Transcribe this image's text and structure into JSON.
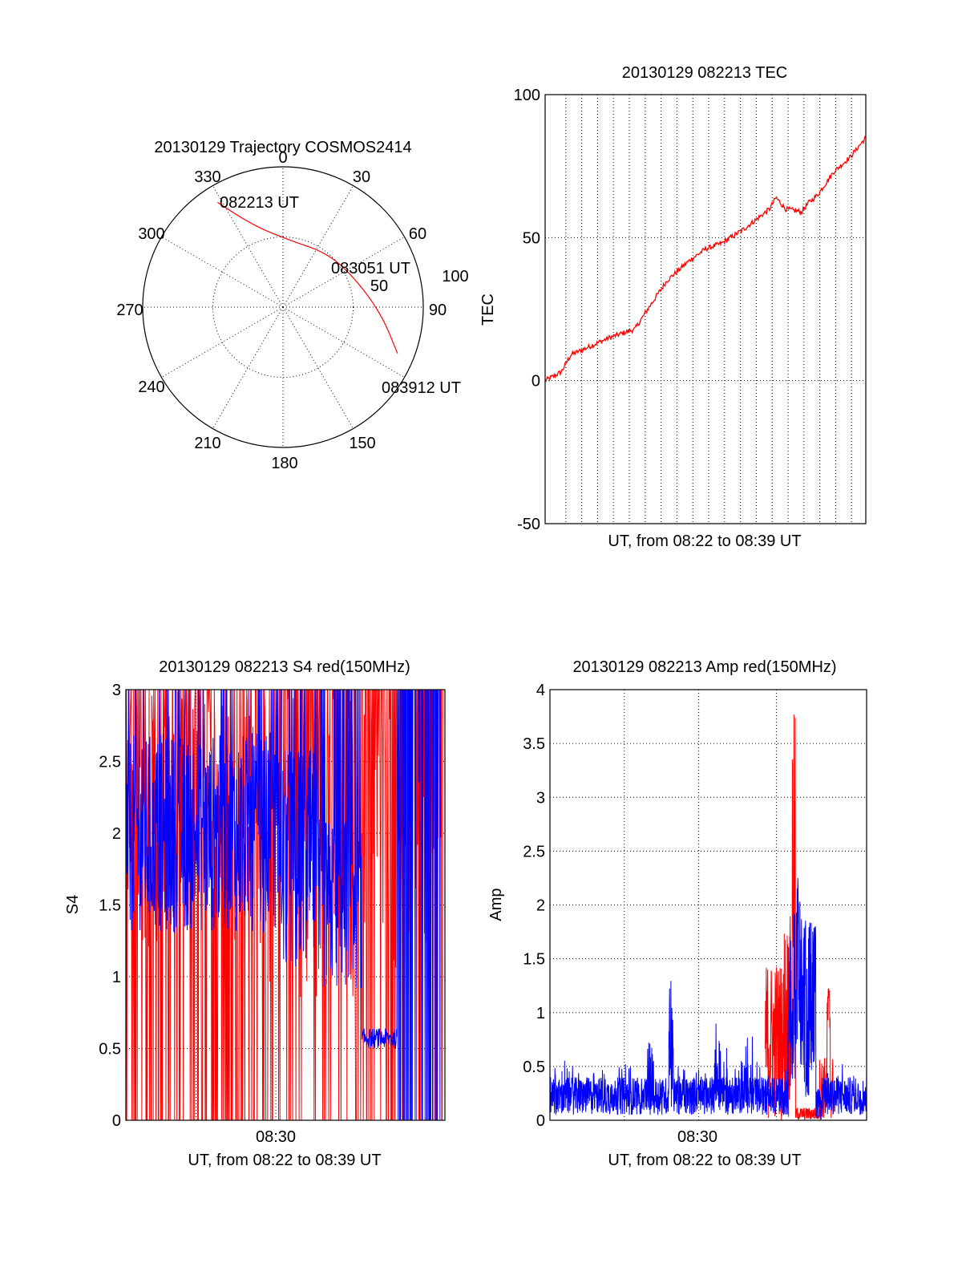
{
  "colors": {
    "red": "#ff0000",
    "blue": "#0000ff",
    "axis": "#000000"
  },
  "chart_data": [
    {
      "type": "polar",
      "title": "20130129 Trajectory COSMOS2414",
      "angle_labels": [
        "0",
        "30",
        "60",
        "90",
        "150",
        "180",
        "210",
        "240",
        "270",
        "300",
        "330"
      ],
      "radial_labels": [
        "50",
        "100"
      ],
      "r_max": 100,
      "grid": true,
      "series": [
        {
          "color": "#ff0000",
          "points": [
            {
              "az": 328,
              "r": 88
            },
            {
              "az": 340,
              "r": 62
            },
            {
              "az": 5,
              "r": 48
            },
            {
              "az": 40,
              "r": 50
            },
            {
              "az": 70,
              "r": 56
            },
            {
              "az": 95,
              "r": 71
            },
            {
              "az": 112,
              "r": 88
            }
          ]
        }
      ],
      "annotations": [
        "082213 UT",
        "083051 UT",
        "083912 UT"
      ]
    },
    {
      "type": "line",
      "title": "20130129 082213 TEC",
      "xlabel": "UT, from 08:22 to 08:39 UT",
      "ylabel": "TEC",
      "ylim": [
        -50,
        100
      ],
      "yticks": [
        "-50",
        "0",
        "50",
        "100"
      ],
      "xlim": [
        0,
        1
      ],
      "grid": true,
      "series": [
        {
          "color": "#ff0000",
          "x": [
            0,
            0.05,
            0.08,
            0.12,
            0.2,
            0.28,
            0.32,
            0.38,
            0.45,
            0.5,
            0.55,
            0.62,
            0.7,
            0.72,
            0.75,
            0.8,
            0.82,
            0.85,
            0.9,
            0.95,
            1.0
          ],
          "y": [
            0,
            3,
            9,
            11,
            15,
            18,
            25,
            35,
            42,
            46,
            48,
            53,
            60,
            64,
            60,
            59,
            62,
            65,
            73,
            78,
            85
          ]
        }
      ]
    },
    {
      "type": "line",
      "title": "20130129 082213 S4 red(150MHz)",
      "xlabel": "UT, from 08:22 to 08:39 UT",
      "ylabel": "S4",
      "ylim": [
        0,
        3
      ],
      "yticks": [
        "0",
        "0.5",
        "1",
        "1.5",
        "2",
        "2.5",
        "3"
      ],
      "xticks": [
        "08:30"
      ],
      "grid": true,
      "series": [
        {
          "color": "#ff0000",
          "note": "dense oscillating signal spanning 0 to 3"
        },
        {
          "color": "#0000ff",
          "note": "dense signal mostly 1.5-3 early, ~0.5-0.6 plateau near 0.75 of span"
        }
      ]
    },
    {
      "type": "line",
      "title": "20130129 082213 Amp red(150MHz)",
      "xlabel": "UT, from 08:22 to 08:39 UT",
      "ylabel": "Amp",
      "ylim": [
        0,
        4
      ],
      "yticks": [
        "0",
        "0.5",
        "1",
        "1.5",
        "2",
        "2.5",
        "3",
        "3.5",
        "4"
      ],
      "xticks": [
        "08:30"
      ],
      "grid": true,
      "series": [
        {
          "color": "#ff0000",
          "note": "burst up to ~3.8 near 0.77 of span"
        },
        {
          "color": "#0000ff",
          "note": "noise ~0.2-0.5, peaks 1.5 near 0.38 and ~2.3 near 0.8 of span"
        }
      ]
    }
  ]
}
